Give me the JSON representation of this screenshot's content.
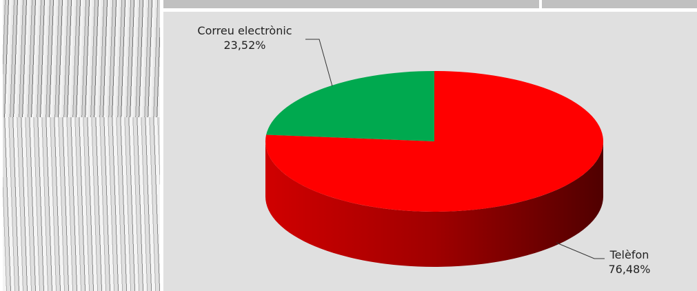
{
  "chart_data": {
    "type": "pie",
    "categories": [
      "Correu electrònic",
      "Telèfon"
    ],
    "values": [
      23.52,
      76.48
    ],
    "value_labels": [
      "23,52%",
      "76,48%"
    ],
    "colors": [
      "#00a94f",
      "#ff0000"
    ]
  }
}
